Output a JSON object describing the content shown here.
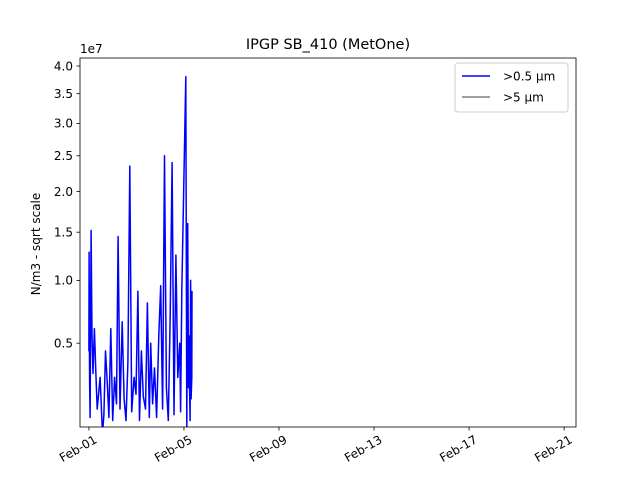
{
  "chart_data": {
    "type": "line",
    "title": "IPGP SB_410 (MetOne)",
    "ylabel": "N/m3 - sqrt scale",
    "xlabel": "",
    "y_scale": "sqrt",
    "y_multiplier_label": "1e7",
    "ylim": [
      0.1,
      4.15
    ],
    "y_ticks": [
      0.5,
      1.0,
      1.5,
      2.0,
      2.5,
      3.0,
      3.5,
      4.0
    ],
    "y_tick_labels": [
      "0.5",
      "1.0",
      "1.5",
      "2.0",
      "2.5",
      "3.0",
      "3.5",
      "4.0"
    ],
    "xlim": [
      "2000-01-31 15:00",
      "2000-02-21 12:00"
    ],
    "x_ticks": [
      "2000-02-01",
      "2000-02-05",
      "2000-02-09",
      "2000-02-13",
      "2000-02-17",
      "2000-02-21"
    ],
    "x_tick_labels": [
      "Feb-01",
      "Feb-05",
      "Feb-09",
      "Feb-13",
      "Feb-17",
      "Feb-21"
    ],
    "grid": false,
    "legend_position": "top-right",
    "series": [
      {
        "name": ">0.5 µm",
        "color": "#0000ff",
        "x": [
          "2000-02-01 00:00",
          "2000-02-01 00:14",
          "2000-02-01 00:43",
          "2000-02-01 01:12",
          "2000-02-01 02:10",
          "2000-02-01 03:07",
          "2000-02-01 04:05",
          "2000-02-01 05:31",
          "2000-02-01 06:58",
          "2000-02-01 08:24",
          "2000-02-01 09:50",
          "2000-02-01 11:17",
          "2000-02-01 13:41",
          "2000-02-01 15:07",
          "2000-02-01 16:48",
          "2000-02-01 18:43",
          "2000-02-01 20:10",
          "2000-02-01 22:05",
          "2000-02-02 00:00",
          "2000-02-02 01:55",
          "2000-02-02 03:50",
          "2000-02-02 05:31",
          "2000-02-02 07:26",
          "2000-02-02 09:36",
          "2000-02-02 11:31",
          "2000-02-02 13:26",
          "2000-02-02 15:22",
          "2000-02-02 17:17",
          "2000-02-02 19:12",
          "2000-02-02 21:36",
          "2000-02-02 23:31",
          "2000-02-03 01:26",
          "2000-02-03 03:07",
          "2000-02-03 05:02",
          "2000-02-03 06:58",
          "2000-02-03 09:07",
          "2000-02-03 11:02",
          "2000-02-03 12:58",
          "2000-02-03 14:24",
          "2000-02-03 16:19",
          "2000-02-03 18:14",
          "2000-02-03 20:24",
          "2000-02-03 22:34",
          "2000-02-04 00:29",
          "2000-02-04 02:24",
          "2000-02-04 04:19",
          "2000-02-04 06:14",
          "2000-02-04 08:10",
          "2000-02-04 10:05",
          "2000-02-04 12:00",
          "2000-02-04 13:55",
          "2000-02-04 15:50",
          "2000-02-04 17:46",
          "2000-02-04 19:41",
          "2000-02-04 20:38",
          "2000-02-04 21:50",
          "2000-02-05 01:55",
          "2000-02-05 02:53",
          "2000-02-05 03:50",
          "2000-02-05 04:34",
          "2000-02-05 05:02",
          "2000-02-05 05:31",
          "2000-02-05 06:14",
          "2000-02-05 06:43",
          "2000-02-05 07:12",
          "2000-02-05 07:55",
          "2000-02-05 08:10"
        ],
        "values": [
          0.45,
          1.28,
          0.28,
          0.13,
          1.52,
          0.55,
          0.32,
          0.6,
          0.33,
          0.16,
          0.22,
          0.3,
          0.08,
          0.14,
          0.45,
          0.26,
          0.13,
          0.6,
          0.12,
          0.3,
          0.18,
          1.45,
          0.16,
          0.65,
          0.2,
          0.12,
          0.38,
          2.35,
          0.15,
          0.3,
          0.22,
          0.9,
          0.12,
          0.45,
          0.21,
          0.16,
          0.8,
          0.13,
          0.5,
          0.18,
          0.35,
          0.13,
          0.55,
          0.95,
          0.16,
          2.5,
          0.25,
          0.12,
          0.7,
          2.4,
          0.14,
          1.25,
          0.3,
          0.5,
          0.15,
          0.9,
          3.8,
          0.1,
          1.6,
          0.25,
          0.55,
          0.3,
          0.12,
          1.0,
          0.2,
          0.3,
          0.9
        ]
      },
      {
        "name": ">5 µm",
        "color": "#808080",
        "x": [],
        "values": []
      }
    ]
  }
}
